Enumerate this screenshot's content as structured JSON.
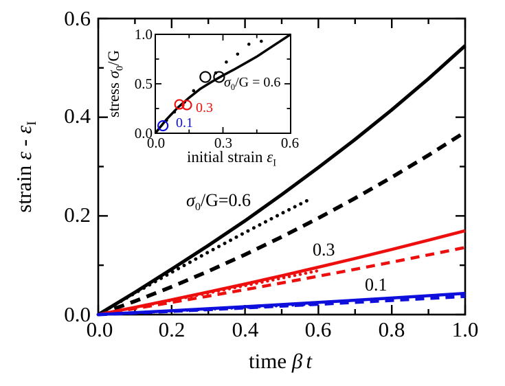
{
  "figure": {
    "background": "#ffffff",
    "text_color": "#000000"
  },
  "colors": {
    "black": "#000000",
    "red": "#ed0e0e",
    "blue": "#0f0fdd"
  },
  "chart_data": [
    {
      "id": "main",
      "type": "line",
      "title": "",
      "xlabel": "time βt",
      "ylabel": "strain ε - εI",
      "xlabel_parts": {
        "text": "time ",
        "beta": "β",
        "t": "t"
      },
      "ylabel_parts": {
        "text": "strain ",
        "eps1": "ε",
        "dash": " - ",
        "eps2": "ε",
        "sub": "I"
      },
      "xlim": [
        0,
        1.0
      ],
      "ylim": [
        0,
        0.6
      ],
      "grid": false,
      "xticks_major": [
        0,
        0.2,
        0.4,
        0.6,
        0.8,
        1.0
      ],
      "xticks_minor": [
        0.1,
        0.3,
        0.5,
        0.7,
        0.9
      ],
      "yticks_major": [
        0,
        0.2,
        0.4,
        0.6
      ],
      "yticks_minor": [
        0.1,
        0.3,
        0.5
      ],
      "xtick_labels": [
        "0.0",
        "0.2",
        "0.4",
        "0.6",
        "0.8",
        "1.0"
      ],
      "ytick_labels": [
        "0.0",
        "0.2",
        "0.4",
        "0.6"
      ],
      "series": [
        {
          "name": "stress-0.6-dotted",
          "color": "#000000",
          "style": "dotted",
          "width": 5,
          "dash": "0.1 9.5",
          "x": [
            0,
            0.1,
            0.2,
            0.3,
            0.4,
            0.5,
            0.58
          ],
          "y": [
            0,
            0.0434,
            0.0856,
            0.1266,
            0.1664,
            0.205,
            0.235
          ]
        },
        {
          "name": "stress-0.6-dashed",
          "color": "#000000",
          "style": "dashed",
          "width": 5.5,
          "dash": "15 10",
          "x": [
            0,
            0.1,
            0.2,
            0.3,
            0.4,
            0.5,
            0.6,
            0.7,
            0.8,
            0.9,
            1.0
          ],
          "y": [
            0,
            0.0271,
            0.0563,
            0.0878,
            0.1215,
            0.1574,
            0.1955,
            0.2358,
            0.2783,
            0.323,
            0.37
          ]
        },
        {
          "name": "stress-0.6-solid",
          "color": "#000000",
          "style": "solid",
          "width": 5,
          "x": [
            0,
            0.1,
            0.2,
            0.3,
            0.4,
            0.5,
            0.6,
            0.7,
            0.8,
            0.9,
            1.0
          ],
          "y": [
            0,
            0.045,
            0.092,
            0.14,
            0.19,
            0.243,
            0.298,
            0.355,
            0.415,
            0.478,
            0.545
          ]
        },
        {
          "name": "stress-0.3-dotted",
          "color": "#ed0e0e",
          "style": "dotted",
          "width": 4.5,
          "dash": "0.1 8",
          "x": [
            0,
            0.1,
            0.2,
            0.3,
            0.4,
            0.5,
            0.6
          ],
          "y": [
            0,
            0.0143,
            0.0288,
            0.0436,
            0.0586,
            0.0738,
            0.089
          ]
        },
        {
          "name": "stress-0.3-dashed",
          "color": "#ed0e0e",
          "style": "dashed",
          "width": 4.5,
          "dash": "13 9",
          "x": [
            0,
            0.1,
            0.2,
            0.3,
            0.4,
            0.5,
            0.6,
            0.7,
            0.8,
            0.9,
            1.0
          ],
          "y": [
            0,
            0.0122,
            0.0246,
            0.0374,
            0.0506,
            0.064,
            0.0778,
            0.0918,
            0.1062,
            0.121,
            0.136
          ]
        },
        {
          "name": "stress-0.3-solid",
          "color": "#ed0e0e",
          "style": "solid",
          "width": 4.5,
          "x": [
            0,
            0.1,
            0.2,
            0.3,
            0.4,
            0.5,
            0.6,
            0.7,
            0.8,
            0.9,
            1.0
          ],
          "y": [
            0,
            0.0148,
            0.03,
            0.0458,
            0.062,
            0.0788,
            0.096,
            0.1138,
            0.132,
            0.1508,
            0.17
          ]
        },
        {
          "name": "stress-0.1-dotted",
          "color": "#0f0fdd",
          "style": "dotted",
          "width": 4.5,
          "dash": "0.1 8",
          "x": [
            0,
            0.2,
            0.4,
            0.6
          ],
          "y": [
            0,
            0.0072,
            0.0145,
            0.0218
          ]
        },
        {
          "name": "stress-0.1-dashed",
          "color": "#0f0fdd",
          "style": "dashed",
          "width": 5,
          "dash": "13 9",
          "x": [
            0,
            0.2,
            0.4,
            0.6,
            0.8,
            1.0
          ],
          "y": [
            0,
            0.0068,
            0.0138,
            0.0212,
            0.029,
            0.037
          ]
        },
        {
          "name": "stress-0.1-solid",
          "color": "#0f0fdd",
          "style": "solid",
          "width": 4.5,
          "x": [
            0,
            0.2,
            0.4,
            0.6,
            0.8,
            1.0
          ],
          "y": [
            0,
            0.0078,
            0.016,
            0.0246,
            0.0336,
            0.043
          ]
        }
      ],
      "annotations": [
        {
          "sigma": "σ",
          "sub": "0",
          "post": "/G=0.6",
          "x": 0.34,
          "y": 0.23,
          "color": "#000000"
        },
        {
          "text": "0.3",
          "x": 0.63,
          "y": 0.125,
          "color": "#000000"
        },
        {
          "text": "0.1",
          "x": 0.76,
          "y": 0.054,
          "color": "#000000"
        }
      ]
    },
    {
      "id": "inset",
      "type": "line",
      "title": "",
      "xlabel": "initial strain εI",
      "ylabel": "stress σ0/G",
      "xlabel_parts": {
        "text": "initial strain ",
        "eps": "ε",
        "sub": "I"
      },
      "ylabel_parts": {
        "text": "stress ",
        "sigma": "σ",
        "sub": "0",
        "post": "/G"
      },
      "xlim": [
        0,
        0.6
      ],
      "ylim": [
        0,
        1.0
      ],
      "grid": false,
      "xticks_major": [
        0,
        0.3,
        0.6
      ],
      "xticks_minor": [
        0.15,
        0.45
      ],
      "yticks_major": [
        0,
        0.5,
        1.0
      ],
      "yticks_minor": [
        0.25,
        0.75
      ],
      "xtick_labels": [
        "0.0",
        "0.3",
        "0.6"
      ],
      "ytick_labels": [
        "0.0",
        "0.5",
        "1.0"
      ],
      "series": [
        {
          "name": "theory-curve",
          "color": "#000000",
          "style": "solid",
          "width": 3.5,
          "x": [
            0,
            0.05,
            0.1,
            0.15,
            0.2,
            0.25,
            0.3,
            0.35,
            0.4,
            0.45,
            0.5,
            0.55,
            0.6
          ],
          "y": [
            0,
            0.14,
            0.26,
            0.36,
            0.45,
            0.52,
            0.585,
            0.645,
            0.71,
            0.775,
            0.85,
            0.925,
            1.0
          ]
        },
        {
          "name": "simulation-dots",
          "color": "#000000",
          "marker": "dot",
          "r": 2.3,
          "points": [
            [
              0.05,
              0.13
            ],
            [
              0.085,
              0.215
            ],
            [
              0.13,
              0.315
            ],
            [
              0.17,
              0.43
            ],
            [
              0.268,
              0.61
            ],
            [
              0.315,
              0.72
            ],
            [
              0.365,
              0.8
            ],
            [
              0.415,
              0.9
            ],
            [
              0.47,
              0.93
            ]
          ]
        },
        {
          "name": "circles-0.6",
          "color": "#000000",
          "marker": "circle",
          "r": 7.5,
          "points": [
            [
              0.222,
              0.569
            ],
            [
              0.283,
              0.569
            ]
          ]
        },
        {
          "name": "circles-0.3",
          "color": "#ed0e0e",
          "marker": "circle",
          "r": 6.5,
          "points": [
            [
              0.107,
              0.292
            ],
            [
              0.14,
              0.285
            ]
          ]
        },
        {
          "name": "circles-0.1",
          "color": "#0f0fdd",
          "marker": "circle",
          "r": 7,
          "points": [
            [
              0.034,
              0.076
            ]
          ]
        }
      ],
      "annotations": [
        {
          "sigma": "σ",
          "sub": "0",
          "post": "/G = 0.6",
          "x": 0.31,
          "y": 0.48,
          "color": "#000000"
        },
        {
          "text": "0.3",
          "x": 0.19,
          "y": 0.25,
          "color": "#ed0e0e"
        },
        {
          "text": "0.1",
          "x": 0.1,
          "y": 0.09,
          "color": "#0f0fdd"
        }
      ]
    }
  ]
}
